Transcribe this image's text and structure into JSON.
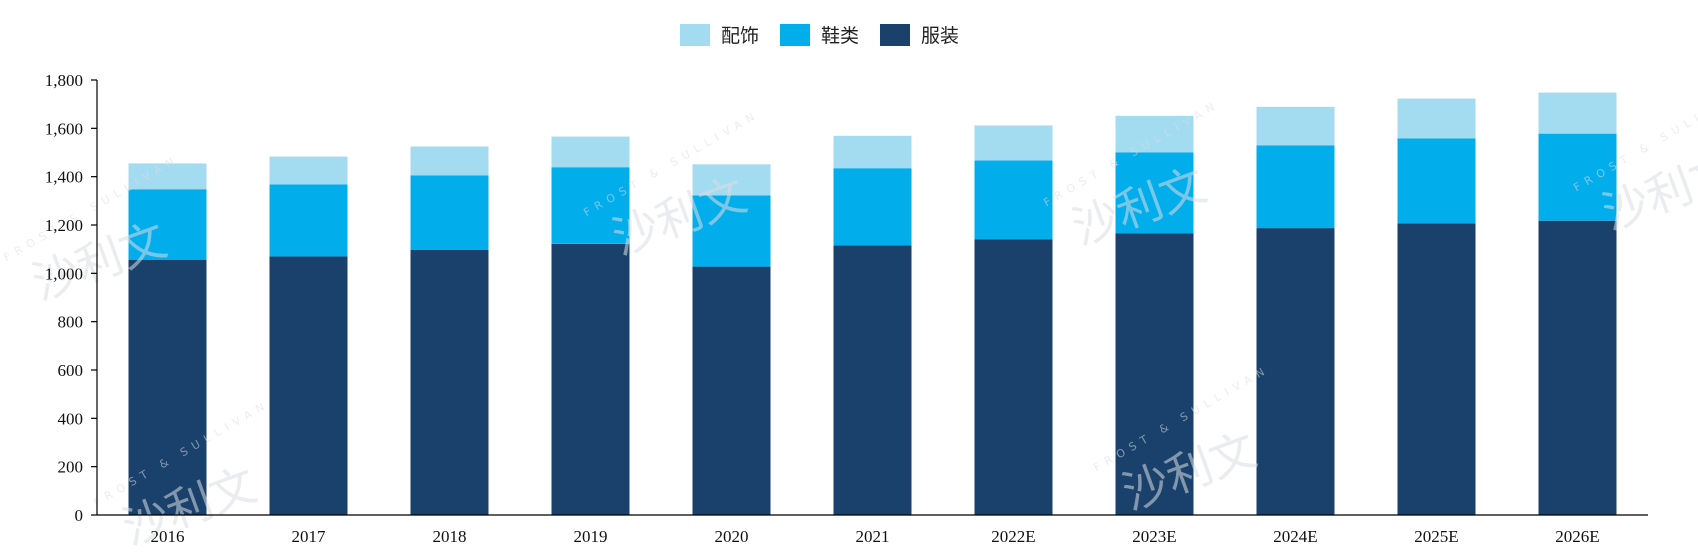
{
  "chart_data": {
    "type": "bar",
    "stacked": true,
    "categories": [
      "2016",
      "2017",
      "2018",
      "2019",
      "2020",
      "2021",
      "2022E",
      "2023E",
      "2024E",
      "2025E",
      "2026E"
    ],
    "series": [
      {
        "name": "服装",
        "color": "#19416b",
        "values": [
          1055,
          1070,
          1098,
          1122,
          1028,
          1116,
          1140,
          1165,
          1187,
          1206,
          1218
        ]
      },
      {
        "name": "鞋类",
        "color": "#02adec",
        "values": [
          293,
          298,
          307,
          317,
          295,
          319,
          327,
          335,
          342,
          352,
          360
        ]
      },
      {
        "name": "配饰",
        "color": "#a3dbf1",
        "values": [
          107,
          115,
          120,
          127,
          128,
          134,
          145,
          152,
          160,
          165,
          170
        ]
      }
    ],
    "legend_order": [
      "配饰",
      "鞋类",
      "服装"
    ],
    "legend_position": "top-center",
    "ylim": [
      0,
      1800
    ],
    "yticks": [
      0,
      200,
      400,
      600,
      800,
      1000,
      1200,
      1400,
      1600,
      1800
    ],
    "ytick_labels": [
      "0",
      "200",
      "400",
      "600",
      "800",
      "1,000",
      "1,200",
      "1,400",
      "1,600",
      "1,800"
    ],
    "grid": false,
    "title": "",
    "xlabel": "",
    "ylabel": ""
  },
  "watermark": {
    "text": "沙利文",
    "subtext": "FROST & SULLIVAN"
  }
}
